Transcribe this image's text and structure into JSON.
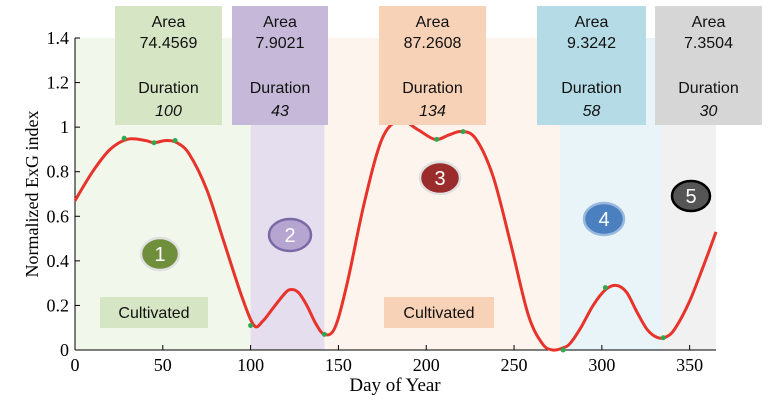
{
  "chart_data": {
    "type": "line",
    "xlabel": "Day of Year",
    "ylabel": "Normalized ExG index",
    "xlim": [
      0,
      365
    ],
    "ylim": [
      0,
      1.4
    ],
    "x_ticks": [
      0,
      50,
      100,
      150,
      200,
      250,
      300,
      350
    ],
    "y_ticks": [
      0,
      0.2,
      0.4,
      0.6,
      0.8,
      1,
      1.2,
      1.4
    ],
    "series": [
      {
        "color": "#e8332b",
        "x": [
          0,
          10,
          20,
          30,
          40,
          45,
          52,
          58,
          65,
          75,
          85,
          95,
          102,
          107,
          112,
          118,
          122,
          127,
          132,
          137,
          142,
          148,
          155,
          165,
          175,
          185,
          195,
          205,
          213,
          220,
          228,
          238,
          248,
          258,
          266,
          272,
          278,
          282,
          288,
          295,
          302,
          308,
          314,
          320,
          326,
          332,
          337,
          342,
          350,
          358,
          365
        ],
        "y": [
          0.67,
          0.8,
          0.9,
          0.946,
          0.94,
          0.93,
          0.94,
          0.93,
          0.88,
          0.72,
          0.48,
          0.24,
          0.11,
          0.13,
          0.18,
          0.24,
          0.27,
          0.26,
          0.2,
          0.12,
          0.07,
          0.1,
          0.3,
          0.67,
          0.95,
          1.03,
          0.99,
          0.945,
          0.965,
          0.98,
          0.95,
          0.78,
          0.48,
          0.16,
          0.03,
          0.0,
          0.01,
          0.03,
          0.1,
          0.2,
          0.27,
          0.29,
          0.26,
          0.17,
          0.09,
          0.055,
          0.06,
          0.1,
          0.22,
          0.38,
          0.53
        ]
      }
    ],
    "markers": {
      "color": "#2fa84f",
      "x": [
        28,
        45,
        57,
        100,
        142,
        184,
        206,
        221,
        278,
        302,
        335
      ],
      "y": [
        0.95,
        0.93,
        0.94,
        0.11,
        0.07,
        1.03,
        0.945,
        0.98,
        0.0,
        0.28,
        0.055
      ]
    },
    "shaded_regions": [
      {
        "x0": 0,
        "x1": 100,
        "color": "#e5f0da",
        "opacity": 0.55
      },
      {
        "x0": 100,
        "x1": 142,
        "color": "#ddd6ea",
        "opacity": 0.8
      },
      {
        "x0": 142,
        "x1": 276,
        "color": "#fbe6d6",
        "opacity": 0.45
      },
      {
        "x0": 276,
        "x1": 334,
        "color": "#dbeef4",
        "opacity": 0.65
      },
      {
        "x0": 334,
        "x1": 365,
        "color": "#ececec",
        "opacity": 0.75
      }
    ],
    "info_boxes": [
      {
        "area_label": "Area",
        "area": "74.4569",
        "duration_label": "Duration",
        "duration": "100",
        "color": "#d6e5c3"
      },
      {
        "area_label": "Area",
        "area": "7.9021",
        "duration_label": "Duration",
        "duration": "43",
        "color": "#c5b8d8"
      },
      {
        "area_label": "Area",
        "area": "87.2608",
        "duration_label": "Duration",
        "duration": "134",
        "color": "#f8d2b6"
      },
      {
        "area_label": "Area",
        "area": "9.3242",
        "duration_label": "Duration",
        "duration": "58",
        "color": "#b5dbe6"
      },
      {
        "area_label": "Area",
        "area": "7.3504",
        "duration_label": "Duration",
        "duration": "30",
        "color": "#d6d6d6"
      }
    ],
    "phase_markers": [
      {
        "label": "1",
        "color": "#6f8f3c",
        "stroke": "#e0e0e0"
      },
      {
        "label": "2",
        "color": "#b5a5d0",
        "stroke": "#7a69a5"
      },
      {
        "label": "3",
        "color": "#9b2c2c",
        "stroke": "#e0e0e0"
      },
      {
        "label": "4",
        "color": "#4a7fc0",
        "stroke": "#9ab7dd"
      },
      {
        "label": "5",
        "color": "#555555",
        "stroke": "#000000"
      }
    ],
    "annotations": [
      {
        "text": "Cultivated",
        "color": "#d6e5c3"
      },
      {
        "text": "Cultivated",
        "color": "#f8d2b6"
      }
    ]
  }
}
